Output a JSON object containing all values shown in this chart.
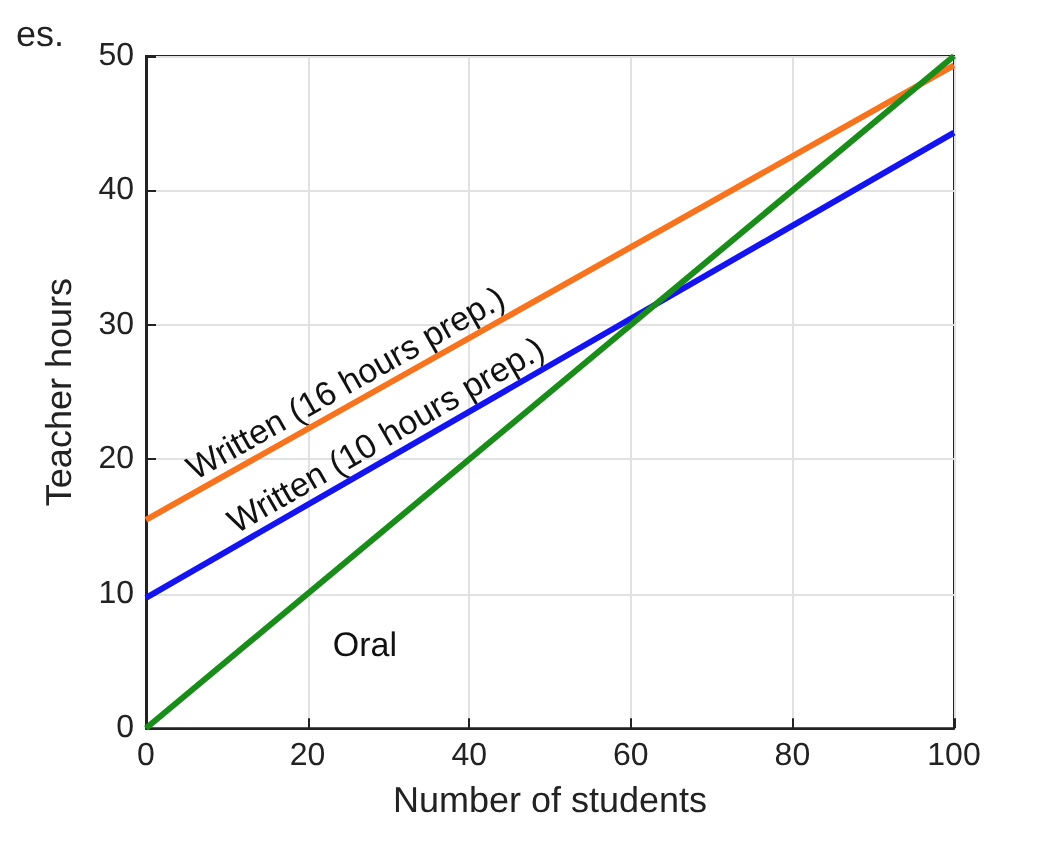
{
  "chart_data": {
    "type": "line",
    "xlabel": "Number of students",
    "ylabel": "Teacher hours",
    "x": [
      0,
      100
    ],
    "series": [
      {
        "name": "Written (16 hours prep.)",
        "color": "#f7731e",
        "values": [
          15.5,
          49.3
        ]
      },
      {
        "name": "Written (10 hours prep.)",
        "color": "#1414f0",
        "values": [
          9.7,
          44.3
        ]
      },
      {
        "name": "Oral",
        "color": "#1a8c1a",
        "values": [
          0,
          50
        ]
      }
    ],
    "xlim": [
      0,
      100
    ],
    "xticks": [
      0,
      20,
      40,
      60,
      80,
      100
    ],
    "ylim": [
      0,
      50
    ],
    "yticks": [
      0,
      10,
      20,
      30,
      40,
      50
    ],
    "grid": true,
    "marker": "none",
    "line_style": "solid",
    "annotations": [
      "es."
    ]
  }
}
